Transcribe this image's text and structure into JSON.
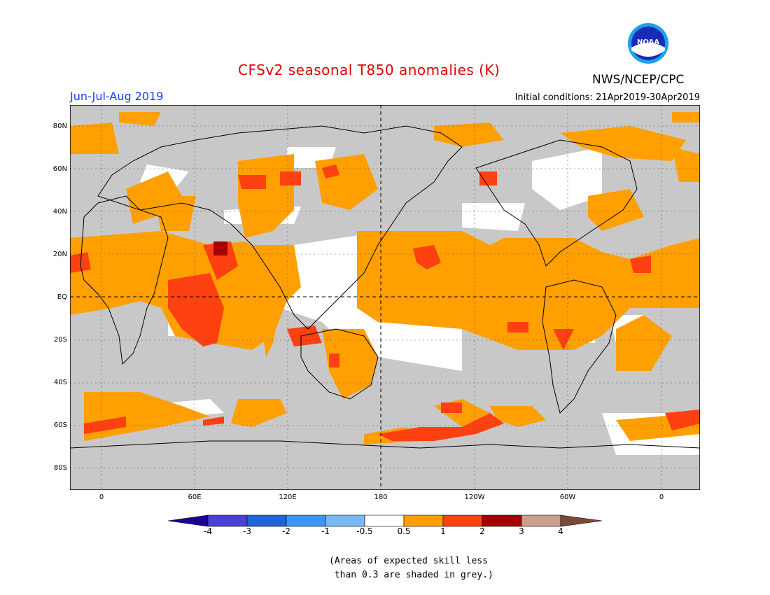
{
  "header": {
    "title": "CFSv2 seasonal T850 anomalies (K)",
    "season": "Jun-Jul-Aug 2019",
    "initial_conditions": "Initial conditions: 21Apr2019-30Apr2019",
    "agency": "NWS/NCEP/CPC",
    "logo_text": "NOAA"
  },
  "map": {
    "lat_labels": [
      "80N",
      "60N",
      "40N",
      "20N",
      "EQ",
      "20S",
      "40S",
      "60S",
      "80S"
    ],
    "lon_labels": [
      "0",
      "60E",
      "120E",
      "180",
      "120W",
      "60W",
      "0"
    ],
    "colors": {
      "grey_low_skill": "#c8c8c8",
      "neutral": "#ffffff",
      "orange_0_5_to_1": "#ffa000",
      "red_1_to_2": "#ff4010",
      "darkred_2_to_3": "#a80000"
    }
  },
  "colorbar": {
    "labels": [
      "-4",
      "-3",
      "-2",
      "-1",
      "-0.5",
      "0.5",
      "1",
      "2",
      "3",
      "4"
    ],
    "colors": [
      "#1d0096",
      "#4a3fd6",
      "#1e64d2",
      "#3c96f0",
      "#78b9f5",
      "#ffffff",
      "#ffa000",
      "#ff4010",
      "#a80000",
      "#c8a08c",
      "#7a4a3a"
    ]
  },
  "note": {
    "line1": "(Areas of expected skill less",
    "line2": " than 0.3 are shaded in grey.)"
  }
}
